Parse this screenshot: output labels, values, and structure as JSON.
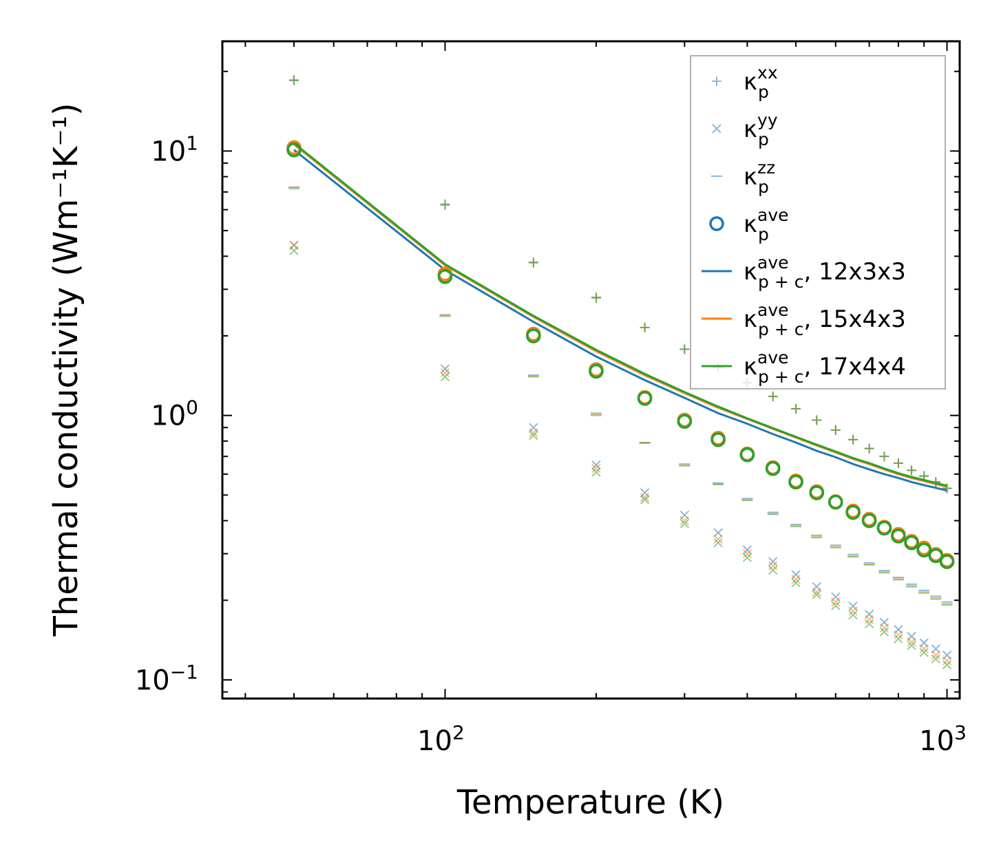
{
  "chart_data": {
    "type": "scatter",
    "scale": {
      "x": "log",
      "y": "log"
    },
    "xlabel": "Temperature (K)",
    "ylabel": "Thermal conductivity (Wm⁻¹K⁻¹)",
    "xlim": [
      36,
      1060
    ],
    "ylim": [
      0.085,
      26
    ],
    "x_major_ticks": [
      {
        "value": 100,
        "label": "10²"
      },
      {
        "value": 1000,
        "label": "10³"
      }
    ],
    "y_major_ticks": [
      {
        "value": 0.1,
        "label": "10⁻¹"
      },
      {
        "value": 1,
        "label": "10⁰"
      },
      {
        "value": 10,
        "label": "10¹"
      }
    ],
    "colors": {
      "c12": "#1f77b4",
      "c15": "#ff7f0e",
      "c17": "#2ca02c"
    },
    "temperatures": [
      50,
      100,
      150,
      200,
      250,
      300,
      350,
      400,
      450,
      500,
      550,
      600,
      650,
      700,
      750,
      800,
      850,
      900,
      950,
      1000
    ],
    "series": [
      {
        "name": "12x3x3",
        "color": "#1f77b4",
        "kappa_xx": [
          18.5,
          6.3,
          3.8,
          2.8,
          2.15,
          1.78,
          1.52,
          1.33,
          1.18,
          1.06,
          0.96,
          0.88,
          0.81,
          0.75,
          0.7,
          0.66,
          0.62,
          0.59,
          0.56,
          0.53
        ],
        "kappa_yy": [
          4.4,
          1.5,
          0.9,
          0.65,
          0.51,
          0.42,
          0.36,
          0.31,
          0.28,
          0.25,
          0.225,
          0.206,
          0.19,
          0.177,
          0.165,
          0.155,
          0.146,
          0.138,
          0.131,
          0.124
        ],
        "kappa_zz": [
          7.3,
          2.4,
          1.42,
          1.02,
          0.79,
          0.655,
          0.555,
          0.485,
          0.43,
          0.387,
          0.352,
          0.323,
          0.298,
          0.277,
          0.259,
          0.244,
          0.23,
          0.218,
          0.207,
          0.197
        ],
        "kappa_ave": [
          10.1,
          3.4,
          2.0,
          1.47,
          1.16,
          0.95,
          0.81,
          0.71,
          0.63,
          0.56,
          0.51,
          0.47,
          0.43,
          0.4,
          0.375,
          0.35,
          0.33,
          0.31,
          0.295,
          0.28
        ],
        "kappa_total": [
          10.1,
          3.55,
          2.26,
          1.67,
          1.36,
          1.165,
          1.02,
          0.93,
          0.85,
          0.79,
          0.735,
          0.695,
          0.655,
          0.625,
          0.6,
          0.58,
          0.56,
          0.545,
          0.532,
          0.52
        ]
      },
      {
        "name": "15x4x3",
        "color": "#ff7f0e",
        "kappa_xx": [
          18.6,
          6.25,
          3.78,
          2.79,
          2.15,
          1.78,
          1.52,
          1.33,
          1.18,
          1.06,
          0.96,
          0.88,
          0.81,
          0.75,
          0.7,
          0.66,
          0.62,
          0.59,
          0.56,
          0.53
        ],
        "kappa_yy": [
          4.4,
          1.45,
          0.86,
          0.63,
          0.49,
          0.4,
          0.34,
          0.3,
          0.27,
          0.24,
          0.215,
          0.197,
          0.182,
          0.169,
          0.157,
          0.148,
          0.139,
          0.131,
          0.124,
          0.118
        ],
        "kappa_zz": [
          7.3,
          2.4,
          1.41,
          1.01,
          0.79,
          0.65,
          0.55,
          0.48,
          0.425,
          0.383,
          0.348,
          0.319,
          0.294,
          0.274,
          0.256,
          0.241,
          0.227,
          0.215,
          0.204,
          0.194
        ],
        "kappa_ave": [
          10.3,
          3.43,
          2.03,
          1.49,
          1.17,
          0.96,
          0.82,
          0.715,
          0.635,
          0.565,
          0.515,
          0.472,
          0.435,
          0.405,
          0.378,
          0.355,
          0.334,
          0.315,
          0.298,
          0.283
        ],
        "kappa_total": [
          10.6,
          3.7,
          2.36,
          1.75,
          1.42,
          1.215,
          1.07,
          0.97,
          0.89,
          0.825,
          0.77,
          0.725,
          0.685,
          0.655,
          0.625,
          0.6,
          0.58,
          0.565,
          0.55,
          0.538
        ]
      },
      {
        "name": "17x4x4",
        "color": "#2ca02c",
        "kappa_xx": [
          18.5,
          6.25,
          3.78,
          2.78,
          2.15,
          1.78,
          1.52,
          1.33,
          1.18,
          1.06,
          0.96,
          0.88,
          0.81,
          0.75,
          0.7,
          0.66,
          0.62,
          0.59,
          0.56,
          0.53
        ],
        "kappa_yy": [
          4.2,
          1.4,
          0.84,
          0.61,
          0.48,
          0.39,
          0.33,
          0.29,
          0.26,
          0.233,
          0.21,
          0.191,
          0.176,
          0.163,
          0.152,
          0.143,
          0.135,
          0.127,
          0.12,
          0.114
        ],
        "kappa_zz": [
          7.2,
          2.37,
          1.4,
          1.0,
          0.785,
          0.645,
          0.548,
          0.477,
          0.423,
          0.38,
          0.345,
          0.316,
          0.292,
          0.272,
          0.254,
          0.239,
          0.225,
          0.213,
          0.202,
          0.192
        ],
        "kappa_ave": [
          10.1,
          3.35,
          2.0,
          1.47,
          1.16,
          0.95,
          0.81,
          0.71,
          0.63,
          0.56,
          0.51,
          0.47,
          0.43,
          0.4,
          0.375,
          0.35,
          0.33,
          0.31,
          0.295,
          0.28
        ],
        "kappa_total": [
          10.7,
          3.73,
          2.38,
          1.77,
          1.435,
          1.225,
          1.08,
          0.975,
          0.895,
          0.83,
          0.775,
          0.73,
          0.69,
          0.66,
          0.63,
          0.605,
          0.585,
          0.57,
          0.555,
          0.542
        ]
      }
    ],
    "legend": {
      "position": "top-right",
      "entries": [
        {
          "marker": "plus",
          "base": "κ",
          "sub": "p",
          "sup": "xx",
          "suffix": ""
        },
        {
          "marker": "x",
          "base": "κ",
          "sub": "p",
          "sup": "yy",
          "suffix": ""
        },
        {
          "marker": "dash",
          "base": "κ",
          "sub": "p",
          "sup": "zz",
          "suffix": ""
        },
        {
          "marker": "circle",
          "base": "κ",
          "sub": "p",
          "sup": "ave",
          "suffix": ""
        },
        {
          "marker": "line",
          "color": "#1f77b4",
          "base": "κ",
          "sub": "p + c",
          "sup": "ave",
          "suffix": ", 12x3x3"
        },
        {
          "marker": "line",
          "color": "#ff7f0e",
          "base": "κ",
          "sub": "p + c",
          "sup": "ave",
          "suffix": ", 15x4x3"
        },
        {
          "marker": "line",
          "color": "#2ca02c",
          "base": "κ",
          "sub": "p + c",
          "sup": "ave",
          "suffix": ", 17x4x4"
        }
      ]
    }
  }
}
